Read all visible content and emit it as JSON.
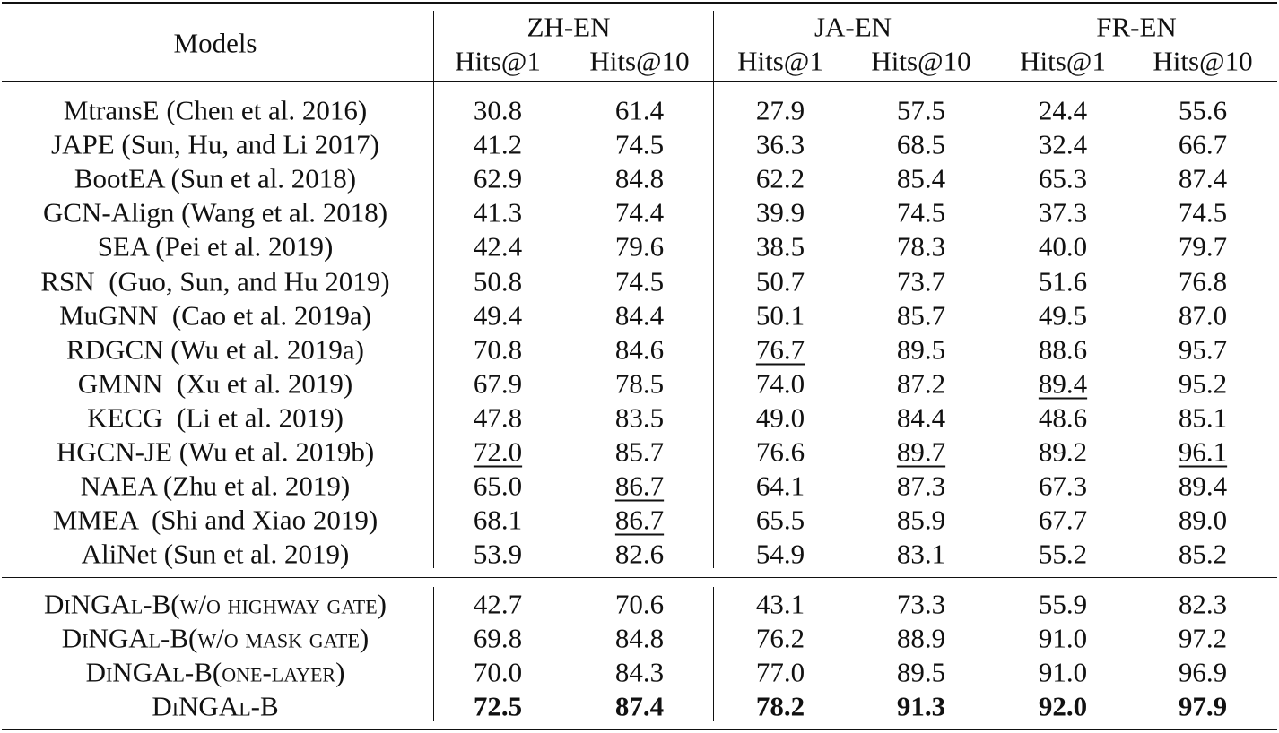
{
  "header": {
    "models": "Models",
    "groups": [
      {
        "name": "ZH-EN",
        "metrics": [
          "Hits@1",
          "Hits@10"
        ]
      },
      {
        "name": "JA-EN",
        "metrics": [
          "Hits@1",
          "Hits@10"
        ]
      },
      {
        "name": "FR-EN",
        "metrics": [
          "Hits@1",
          "Hits@10"
        ]
      }
    ]
  },
  "baselines": [
    {
      "model": "MtransE (Chen et al. 2016)",
      "cells": [
        "30.8",
        "61.4",
        "27.9",
        "57.5",
        "24.4",
        "55.6"
      ]
    },
    {
      "model": "JAPE (Sun, Hu, and Li 2017)",
      "cells": [
        "41.2",
        "74.5",
        "36.3",
        "68.5",
        "32.4",
        "66.7"
      ]
    },
    {
      "model": "BootEA (Sun et al. 2018)",
      "cells": [
        "62.9",
        "84.8",
        "62.2",
        "85.4",
        "65.3",
        "87.4"
      ]
    },
    {
      "model": "GCN-Align (Wang et al. 2018)",
      "cells": [
        "41.3",
        "74.4",
        "39.9",
        "74.5",
        "37.3",
        "74.5"
      ]
    },
    {
      "model": "SEA (Pei et al. 2019)",
      "cells": [
        "42.4",
        "79.6",
        "38.5",
        "78.3",
        "40.0",
        "79.7"
      ]
    },
    {
      "model": "RSN  (Guo, Sun, and Hu 2019)",
      "cells": [
        "50.8",
        "74.5",
        "50.7",
        "73.7",
        "51.6",
        "76.8"
      ]
    },
    {
      "model": "MuGNN  (Cao et al. 2019a)",
      "cells": [
        "49.4",
        "84.4",
        "50.1",
        "85.7",
        "49.5",
        "87.0"
      ]
    },
    {
      "model": "RDGCN (Wu et al. 2019a)",
      "cells": [
        "70.8",
        "84.6",
        "76.7",
        "89.5",
        "88.6",
        "95.7"
      ],
      "underline": [
        2
      ]
    },
    {
      "model": "GMNN  (Xu et al. 2019)",
      "cells": [
        "67.9",
        "78.5",
        "74.0",
        "87.2",
        "89.4",
        "95.2"
      ],
      "underline": [
        4
      ]
    },
    {
      "model": "KECG  (Li et al. 2019)",
      "cells": [
        "47.8",
        "83.5",
        "49.0",
        "84.4",
        "48.6",
        "85.1"
      ]
    },
    {
      "model": "HGCN-JE (Wu et al. 2019b)",
      "cells": [
        "72.0",
        "85.7",
        "76.6",
        "89.7",
        "89.2",
        "96.1"
      ],
      "underline": [
        0,
        3,
        5
      ]
    },
    {
      "model": "NAEA (Zhu et al. 2019)",
      "cells": [
        "65.0",
        "86.7",
        "64.1",
        "87.3",
        "67.3",
        "89.4"
      ],
      "underline": [
        1
      ]
    },
    {
      "model": "MMEA  (Shi and Xiao 2019)",
      "cells": [
        "68.1",
        "86.7",
        "65.5",
        "85.9",
        "67.7",
        "89.0"
      ],
      "underline": [
        1
      ]
    },
    {
      "model": "AliNet (Sun et al. 2019)",
      "cells": [
        "53.9",
        "82.6",
        "54.9",
        "83.1",
        "55.2",
        "85.2"
      ]
    }
  ],
  "variants": [
    {
      "model": "DiNGAl-B(w/o highway gate)",
      "cells": [
        "42.7",
        "70.6",
        "43.1",
        "73.3",
        "55.9",
        "82.3"
      ]
    },
    {
      "model": "DiNGAl-B(w/o mask gate)",
      "cells": [
        "69.8",
        "84.8",
        "76.2",
        "88.9",
        "91.0",
        "97.2"
      ]
    },
    {
      "model": "DiNGAl-B(one-layer)",
      "cells": [
        "70.0",
        "84.3",
        "77.0",
        "89.5",
        "91.0",
        "96.9"
      ]
    },
    {
      "model": "DiNGAl-B",
      "cells": [
        "72.5",
        "87.4",
        "78.2",
        "91.3",
        "92.0",
        "97.9"
      ],
      "bold": true
    }
  ]
}
